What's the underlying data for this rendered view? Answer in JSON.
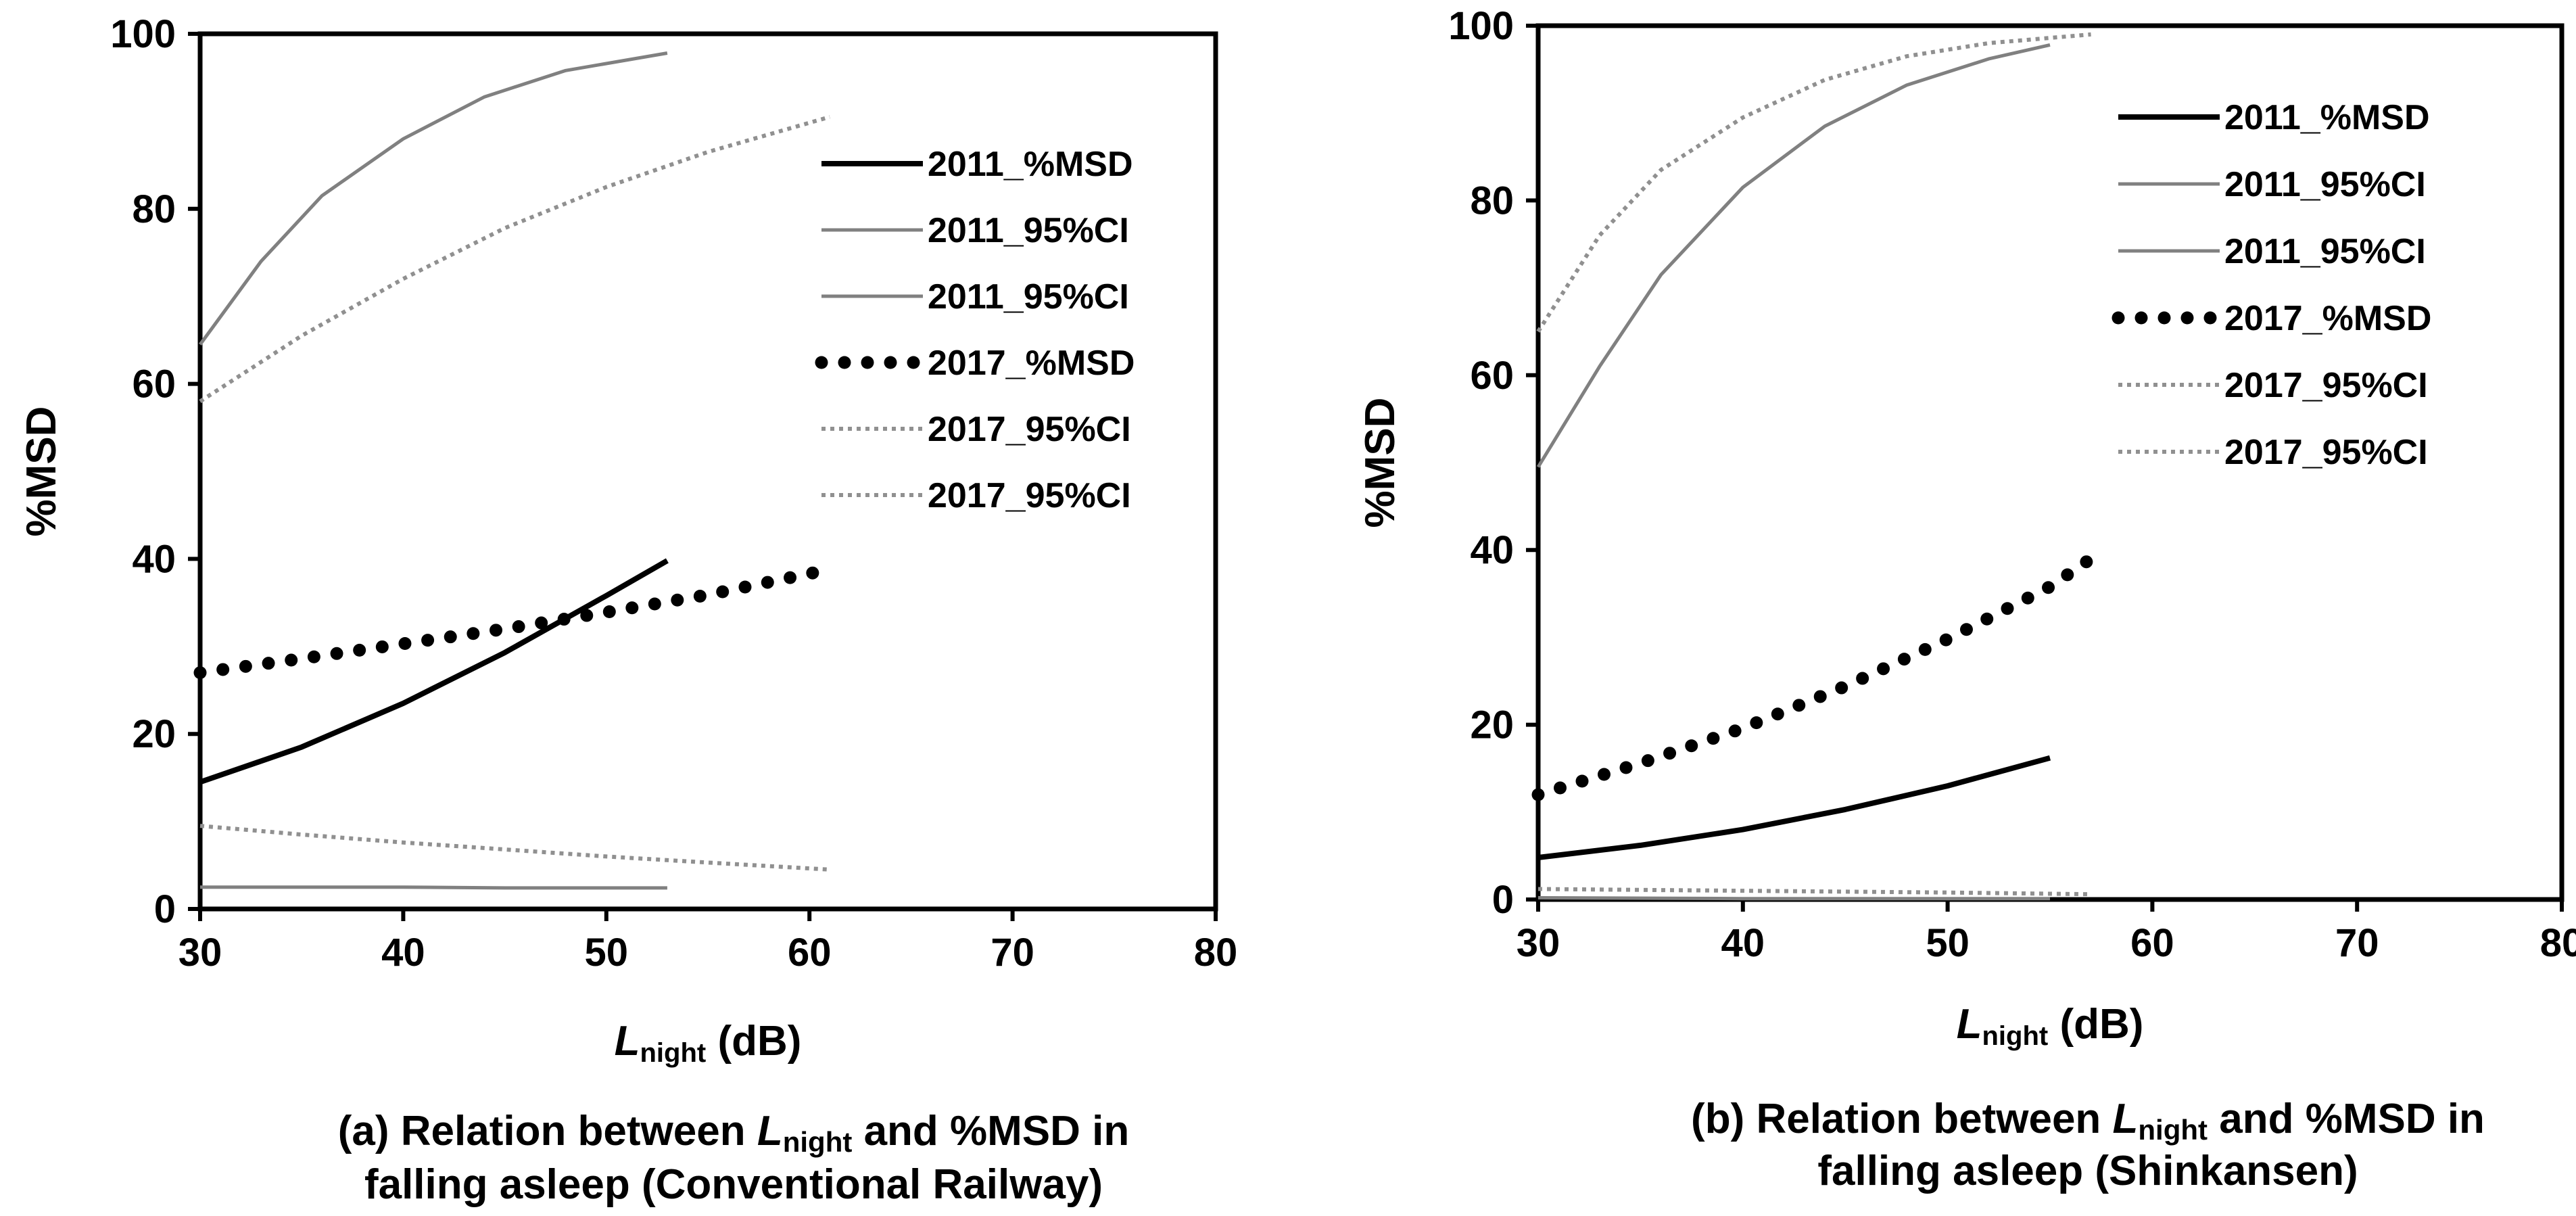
{
  "chart_data": [
    {
      "type": "line",
      "panel": "a",
      "xlabel_main": "L",
      "xlabel_sub": "night",
      "xlabel_unit": " (dB)",
      "ylabel": "%MSD",
      "xlim": [
        30,
        80
      ],
      "ylim": [
        0,
        100
      ],
      "xticks": [
        30,
        40,
        50,
        60,
        70,
        80
      ],
      "yticks": [
        0,
        20,
        40,
        60,
        80,
        100
      ],
      "caption": {
        "line1_pre": "(a) Relation between ",
        "line1_var": "L",
        "line1_sub": "night",
        "line1_post": " and %MSD in",
        "line2": "falling asleep (Conventional Railway)"
      },
      "series": [
        {
          "name": "2011_%MSD",
          "style": "solid-thick",
          "color": "#000000",
          "x": [
            30,
            35,
            40,
            45,
            50,
            53
          ],
          "y": [
            14.5,
            18.5,
            23.5,
            29.3,
            35.8,
            39.8
          ]
        },
        {
          "name": "2011_95%CI",
          "style": "solid-thin",
          "color": "#808080",
          "x": [
            30,
            33,
            36,
            40,
            44,
            48,
            53
          ],
          "y": [
            64.5,
            74,
            81.5,
            88,
            92.8,
            95.8,
            97.8
          ]
        },
        {
          "name": "2011_95%CI",
          "style": "solid-thin",
          "color": "#808080",
          "x": [
            30,
            40,
            45,
            53
          ],
          "y": [
            2.5,
            2.5,
            2.4,
            2.4
          ]
        },
        {
          "name": "2017_%MSD",
          "style": "dotted-thick",
          "color": "#000000",
          "x": [
            30,
            35,
            40,
            45,
            50,
            55,
            61
          ],
          "y": [
            27,
            28.6,
            30.3,
            32.0,
            33.9,
            35.9,
            38.8
          ]
        },
        {
          "name": "2017_95%CI",
          "style": "dotted-thin",
          "color": "#909090",
          "x": [
            30,
            35,
            40,
            45,
            50,
            55,
            61
          ],
          "y": [
            58,
            65.5,
            72,
            77.8,
            82.5,
            86.5,
            90.5
          ]
        },
        {
          "name": "2017_95%CI",
          "style": "dotted-thin",
          "color": "#909090",
          "x": [
            30,
            35,
            40,
            45,
            50,
            55,
            61
          ],
          "y": [
            9.5,
            8.5,
            7.6,
            6.8,
            6,
            5.3,
            4.5
          ]
        }
      ]
    },
    {
      "type": "line",
      "panel": "b",
      "xlabel_main": "L",
      "xlabel_sub": "night",
      "xlabel_unit": " (dB)",
      "ylabel": "%MSD",
      "xlim": [
        30,
        80
      ],
      "ylim": [
        0,
        100
      ],
      "xticks": [
        30,
        40,
        50,
        60,
        70,
        80
      ],
      "yticks": [
        0,
        20,
        40,
        60,
        80,
        100
      ],
      "caption": {
        "line1_pre": "(b) Relation between ",
        "line1_var": "L",
        "line1_sub": "night",
        "line1_post": " and %MSD in",
        "line2": "falling asleep (Shinkansen)"
      },
      "series": [
        {
          "name": "2011_%MSD",
          "style": "solid-thick",
          "color": "#000000",
          "x": [
            30,
            35,
            40,
            45,
            50,
            55
          ],
          "y": [
            4.8,
            6.2,
            8.0,
            10.3,
            13.0,
            16.2
          ]
        },
        {
          "name": "2011_95%CI",
          "style": "solid-thin",
          "color": "#808080",
          "x": [
            30,
            33,
            36,
            40,
            44,
            48,
            52,
            55
          ],
          "y": [
            49.5,
            61,
            71.5,
            81.5,
            88.5,
            93.2,
            96.2,
            97.8
          ]
        },
        {
          "name": "2011_95%CI",
          "style": "solid-thin",
          "color": "#808080",
          "x": [
            30,
            40,
            55
          ],
          "y": [
            0.2,
            0.1,
            0.1
          ]
        },
        {
          "name": "2017_%MSD",
          "style": "dotted-thick",
          "color": "#000000",
          "x": [
            30,
            35,
            40,
            45,
            50,
            55,
            57
          ],
          "y": [
            12,
            15.6,
            19.6,
            24.4,
            29.8,
            35.8,
            39
          ]
        },
        {
          "name": "2017_95%CI",
          "style": "dotted-thin",
          "color": "#909090",
          "x": [
            30,
            33,
            36,
            40,
            44,
            48,
            52,
            57
          ],
          "y": [
            65,
            76,
            83.5,
            89.5,
            93.8,
            96.5,
            98,
            99
          ]
        },
        {
          "name": "2017_95%CI",
          "style": "dotted-thin",
          "color": "#909090",
          "x": [
            30,
            40,
            50,
            57
          ],
          "y": [
            1.2,
            1.0,
            0.8,
            0.6
          ]
        }
      ]
    }
  ]
}
